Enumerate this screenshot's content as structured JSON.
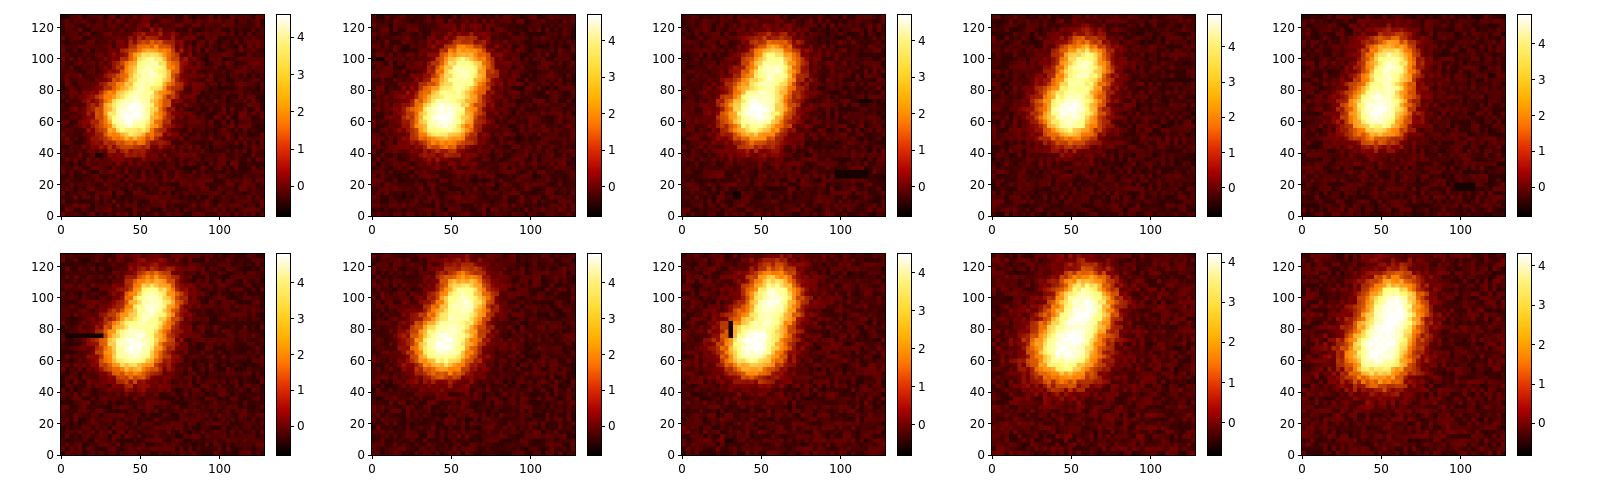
{
  "chart_data": {
    "type": "heatmap",
    "layout": {
      "rows": 2,
      "cols": 5
    },
    "colormap": "afmhot",
    "background_color": "#000000",
    "shared": {
      "xlim": [
        0,
        128
      ],
      "ylim": [
        0,
        128
      ],
      "xticks": [
        0,
        50,
        100
      ],
      "yticks": [
        0,
        20,
        40,
        60,
        80,
        100,
        120
      ]
    },
    "panels": [
      {
        "vmin": -0.8,
        "vmax": 4.6,
        "colorbar_ticks": [
          0,
          1,
          2,
          3,
          4
        ],
        "blobs": [
          {
            "cx": 44,
            "cy": 65,
            "sx": 13,
            "sy": 13,
            "peak": 4.6
          },
          {
            "cx": 57,
            "cy": 94,
            "sx": 11,
            "sy": 12,
            "peak": 3.7
          }
        ],
        "masks": [
          {
            "x0": 22,
            "x1": 27,
            "y0": 37,
            "y1": 41
          }
        ]
      },
      {
        "vmin": -0.8,
        "vmax": 4.7,
        "colorbar_ticks": [
          0,
          1,
          2,
          3,
          4
        ],
        "blobs": [
          {
            "cx": 45,
            "cy": 63,
            "sx": 13,
            "sy": 13,
            "peak": 4.6
          },
          {
            "cx": 58,
            "cy": 93,
            "sx": 11,
            "sy": 12,
            "peak": 3.8
          }
        ],
        "masks": [
          {
            "x0": 0,
            "x1": 8,
            "y0": 99,
            "y1": 101
          }
        ]
      },
      {
        "vmin": -0.8,
        "vmax": 4.7,
        "colorbar_ticks": [
          0,
          1,
          2,
          3,
          4
        ],
        "blobs": [
          {
            "cx": 47,
            "cy": 66,
            "sx": 13,
            "sy": 13,
            "peak": 4.6
          },
          {
            "cx": 58,
            "cy": 95,
            "sx": 11,
            "sy": 12,
            "peak": 3.8
          }
        ],
        "masks": [
          {
            "x0": 95,
            "x1": 116,
            "y0": 25,
            "y1": 29
          },
          {
            "x0": 111,
            "x1": 120,
            "y0": 72,
            "y1": 74
          },
          {
            "x0": 32,
            "x1": 36,
            "y0": 11,
            "y1": 16
          }
        ]
      },
      {
        "vmin": -0.8,
        "vmax": 4.9,
        "colorbar_ticks": [
          0,
          1,
          2,
          3,
          4
        ],
        "blobs": [
          {
            "cx": 49,
            "cy": 66,
            "sx": 13,
            "sy": 13,
            "peak": 4.7
          },
          {
            "cx": 58,
            "cy": 96,
            "sx": 11,
            "sy": 12,
            "peak": 3.9
          }
        ],
        "masks": []
      },
      {
        "vmin": -0.8,
        "vmax": 4.8,
        "colorbar_ticks": [
          0,
          1,
          2,
          3,
          4
        ],
        "blobs": [
          {
            "cx": 48,
            "cy": 67,
            "sx": 13,
            "sy": 13,
            "peak": 4.7
          },
          {
            "cx": 56,
            "cy": 97,
            "sx": 11,
            "sy": 12,
            "peak": 3.9
          }
        ],
        "masks": [
          {
            "x0": 95,
            "x1": 109,
            "y0": 16,
            "y1": 22
          }
        ]
      },
      {
        "vmin": -0.8,
        "vmax": 4.8,
        "colorbar_ticks": [
          0,
          1,
          2,
          3,
          4
        ],
        "blobs": [
          {
            "cx": 45,
            "cy": 69,
            "sx": 13,
            "sy": 13,
            "peak": 4.6
          },
          {
            "cx": 58,
            "cy": 98,
            "sx": 11,
            "sy": 13,
            "peak": 4.0
          }
        ],
        "masks": [
          {
            "x0": 3,
            "x1": 27,
            "y0": 74,
            "y1": 78
          }
        ]
      },
      {
        "vmin": -0.8,
        "vmax": 4.8,
        "colorbar_ticks": [
          0,
          1,
          2,
          3,
          4
        ],
        "blobs": [
          {
            "cx": 45,
            "cy": 70,
            "sx": 13,
            "sy": 13,
            "peak": 4.6
          },
          {
            "cx": 58,
            "cy": 99,
            "sx": 11,
            "sy": 13,
            "peak": 4.0
          }
        ],
        "masks": []
      },
      {
        "vmin": -0.8,
        "vmax": 4.5,
        "colorbar_ticks": [
          0,
          1,
          2,
          3,
          4
        ],
        "blobs": [
          {
            "cx": 45,
            "cy": 70,
            "sx": 13,
            "sy": 13,
            "peak": 4.4
          },
          {
            "cx": 58,
            "cy": 100,
            "sx": 11,
            "sy": 13,
            "peak": 4.0
          }
        ],
        "masks": [
          {
            "x0": 30,
            "x1": 33,
            "y0": 74,
            "y1": 85
          },
          {
            "x0": 28,
            "x1": 32,
            "y0": 8,
            "y1": 11
          }
        ]
      },
      {
        "vmin": -0.8,
        "vmax": 4.2,
        "colorbar_ticks": [
          0,
          1,
          2,
          3,
          4
        ],
        "blobs": [
          {
            "cx": 46,
            "cy": 67,
            "sx": 14,
            "sy": 14,
            "peak": 4.0
          },
          {
            "cx": 59,
            "cy": 96,
            "sx": 12,
            "sy": 14,
            "peak": 3.9
          }
        ],
        "masks": []
      },
      {
        "vmin": -0.8,
        "vmax": 4.3,
        "colorbar_ticks": [
          0,
          1,
          2,
          3,
          4
        ],
        "blobs": [
          {
            "cx": 48,
            "cy": 65,
            "sx": 14,
            "sy": 14,
            "peak": 4.0
          },
          {
            "cx": 58,
            "cy": 94,
            "sx": 12,
            "sy": 14,
            "peak": 4.1
          }
        ],
        "masks": []
      }
    ]
  }
}
